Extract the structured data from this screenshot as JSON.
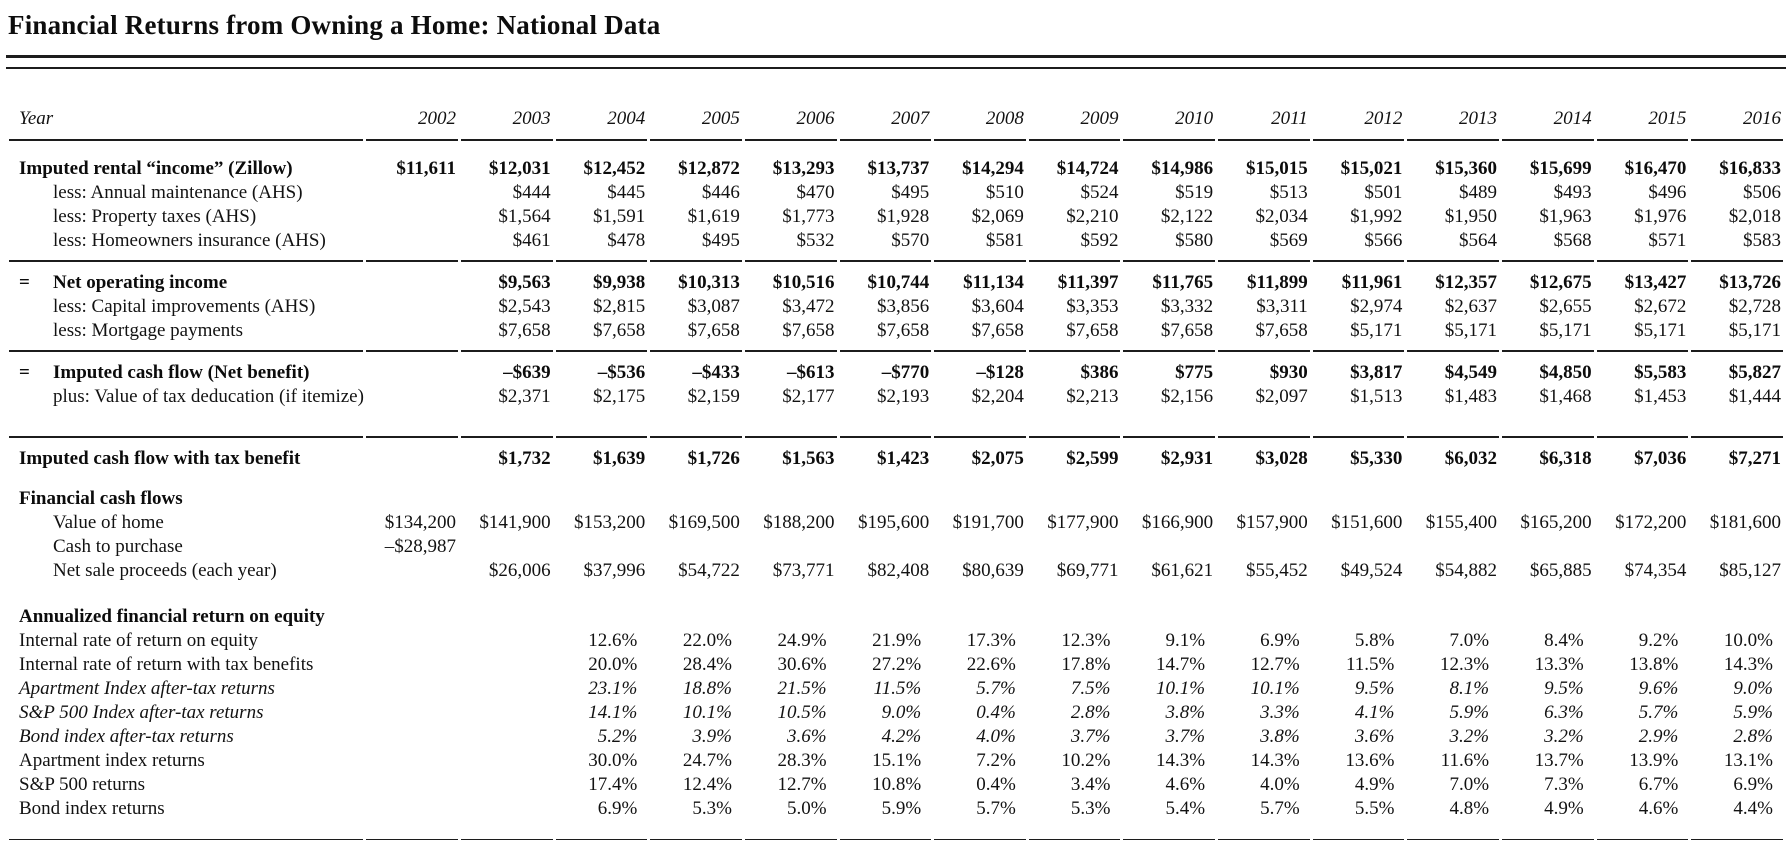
{
  "title": "Financial Returns from Owning a Home: National Data",
  "table": {
    "year_label": "Year",
    "years": [
      "2002",
      "2003",
      "2004",
      "2005",
      "2006",
      "2007",
      "2008",
      "2009",
      "2010",
      "2011",
      "2012",
      "2013",
      "2014",
      "2015",
      "2016"
    ],
    "rows": [
      {
        "label": "Imputed rental “income” (Zillow)",
        "style": "bold",
        "spacing": "first",
        "values": [
          "$11,611",
          "$12,031",
          "$12,452",
          "$12,872",
          "$13,293",
          "$13,737",
          "$14,294",
          "$14,724",
          "$14,986",
          "$15,015",
          "$15,021",
          "$15,360",
          "$15,699",
          "$16,470",
          "$16,833"
        ]
      },
      {
        "label": "less: Annual maintenance (AHS)",
        "style": "indent",
        "values": [
          "",
          "$444",
          "$445",
          "$446",
          "$470",
          "$495",
          "$510",
          "$524",
          "$519",
          "$513",
          "$501",
          "$489",
          "$493",
          "$496",
          "$506"
        ]
      },
      {
        "label": "less: Property taxes (AHS)",
        "style": "indent",
        "values": [
          "",
          "$1,564",
          "$1,591",
          "$1,619",
          "$1,773",
          "$1,928",
          "$2,069",
          "$2,210",
          "$2,122",
          "$2,034",
          "$1,992",
          "$1,950",
          "$1,963",
          "$1,976",
          "$2,018"
        ]
      },
      {
        "label": "less: Homeowners insurance (AHS)",
        "style": "indent",
        "spacing": "before-rule",
        "rule_below": true,
        "values": [
          "",
          "$461",
          "$478",
          "$495",
          "$532",
          "$570",
          "$581",
          "$592",
          "$580",
          "$569",
          "$566",
          "$564",
          "$568",
          "$571",
          "$583"
        ]
      },
      {
        "label": "Net operating income",
        "style": "bold",
        "eq": "=",
        "spacing": "after-rule",
        "values": [
          "",
          "$9,563",
          "$9,938",
          "$10,313",
          "$10,516",
          "$10,744",
          "$11,134",
          "$11,397",
          "$11,765",
          "$11,899",
          "$11,961",
          "$12,357",
          "$12,675",
          "$13,427",
          "$13,726"
        ]
      },
      {
        "label": "less: Capital improvements (AHS)",
        "style": "indent",
        "values": [
          "",
          "$2,543",
          "$2,815",
          "$3,087",
          "$3,472",
          "$3,856",
          "$3,604",
          "$3,353",
          "$3,332",
          "$3,311",
          "$2,974",
          "$2,637",
          "$2,655",
          "$2,672",
          "$2,728"
        ]
      },
      {
        "label": "less: Mortgage payments",
        "style": "indent",
        "spacing": "before-rule",
        "rule_below": true,
        "values": [
          "",
          "$7,658",
          "$7,658",
          "$7,658",
          "$7,658",
          "$7,658",
          "$7,658",
          "$7,658",
          "$7,658",
          "$7,658",
          "$5,171",
          "$5,171",
          "$5,171",
          "$5,171",
          "$5,171"
        ]
      },
      {
        "label": "Imputed cash flow (Net benefit)",
        "style": "bold",
        "eq": "=",
        "spacing": "after-rule",
        "values": [
          "",
          "–$639",
          "–$536",
          "–$433",
          "–$613",
          "–$770",
          "–$128",
          "$386",
          "$775",
          "$930",
          "$3,817",
          "$4,549",
          "$4,850",
          "$5,583",
          "$5,827"
        ]
      },
      {
        "label": "plus: Value of tax deducation (if itemize)",
        "style": "indent",
        "values": [
          "",
          "$2,371",
          "$2,175",
          "$2,159",
          "$2,177",
          "$2,193",
          "$2,204",
          "$2,213",
          "$2,156",
          "$2,097",
          "$1,513",
          "$1,483",
          "$1,468",
          "$1,453",
          "$1,444"
        ]
      },
      {
        "type": "spacer-rule"
      },
      {
        "label": "Imputed cash flow with tax benefit",
        "style": "bold",
        "spacing": "after-rule",
        "values": [
          "",
          "$1,732",
          "$1,639",
          "$1,726",
          "$1,563",
          "$1,423",
          "$2,075",
          "$2,599",
          "$2,931",
          "$3,028",
          "$5,330",
          "$6,032",
          "$6,318",
          "$7,036",
          "$7,271"
        ]
      },
      {
        "label": "Financial cash flows",
        "style": "section",
        "spacing": "gap",
        "values": []
      },
      {
        "label": "Value of home",
        "style": "indent",
        "values": [
          "$134,200",
          "$141,900",
          "$153,200",
          "$169,500",
          "$188,200",
          "$195,600",
          "$191,700",
          "$177,900",
          "$166,900",
          "$157,900",
          "$151,600",
          "$155,400",
          "$165,200",
          "$172,200",
          "$181,600"
        ]
      },
      {
        "label": "Cash to purchase",
        "style": "indent",
        "values": [
          "–$28,987",
          "",
          "",
          "",
          "",
          "",
          "",
          "",
          "",
          "",
          "",
          "",
          "",
          "",
          ""
        ]
      },
      {
        "label": "Net sale proceeds (each year)",
        "style": "indent",
        "values": [
          "",
          "$26,006",
          "$37,996",
          "$54,722",
          "$73,771",
          "$82,408",
          "$80,639",
          "$69,771",
          "$61,621",
          "$55,452",
          "$49,524",
          "$54,882",
          "$65,885",
          "$74,354",
          "$85,127"
        ]
      },
      {
        "label": "Annualized financial return on equity",
        "style": "section",
        "spacing": "gap-large",
        "values": []
      },
      {
        "label": "Internal rate of return on equity",
        "style": "plain",
        "pct": true,
        "values": [
          "",
          "",
          "12.6%",
          "22.0%",
          "24.9%",
          "21.9%",
          "17.3%",
          "12.3%",
          "9.1%",
          "6.9%",
          "5.8%",
          "7.0%",
          "8.4%",
          "9.2%",
          "10.0%"
        ]
      },
      {
        "label": "Internal rate of return with tax benefits",
        "style": "plain",
        "pct": true,
        "values": [
          "",
          "",
          "20.0%",
          "28.4%",
          "30.6%",
          "27.2%",
          "22.6%",
          "17.8%",
          "14.7%",
          "12.7%",
          "11.5%",
          "12.3%",
          "13.3%",
          "13.8%",
          "14.3%"
        ]
      },
      {
        "label": "Apartment Index after-tax returns",
        "style": "italic",
        "pct": true,
        "values": [
          "",
          "",
          "23.1%",
          "18.8%",
          "21.5%",
          "11.5%",
          "5.7%",
          "7.5%",
          "10.1%",
          "10.1%",
          "9.5%",
          "8.1%",
          "9.5%",
          "9.6%",
          "9.0%"
        ]
      },
      {
        "label": "S&P 500 Index after-tax returns",
        "style": "italic",
        "pct": true,
        "values": [
          "",
          "",
          "14.1%",
          "10.1%",
          "10.5%",
          "9.0%",
          "0.4%",
          "2.8%",
          "3.8%",
          "3.3%",
          "4.1%",
          "5.9%",
          "6.3%",
          "5.7%",
          "5.9%"
        ]
      },
      {
        "label": "Bond index after-tax returns",
        "style": "italic",
        "pct": true,
        "values": [
          "",
          "",
          "5.2%",
          "3.9%",
          "3.6%",
          "4.2%",
          "4.0%",
          "3.7%",
          "3.7%",
          "3.8%",
          "3.6%",
          "3.2%",
          "3.2%",
          "2.9%",
          "2.8%"
        ]
      },
      {
        "label": "Apartment index returns",
        "style": "plain",
        "pct": true,
        "values": [
          "",
          "",
          "30.0%",
          "24.7%",
          "28.3%",
          "15.1%",
          "7.2%",
          "10.2%",
          "14.3%",
          "14.3%",
          "13.6%",
          "11.6%",
          "13.7%",
          "13.9%",
          "13.1%"
        ]
      },
      {
        "label": "S&P 500 returns",
        "style": "plain",
        "pct": true,
        "values": [
          "",
          "",
          "17.4%",
          "12.4%",
          "12.7%",
          "10.8%",
          "0.4%",
          "3.4%",
          "4.6%",
          "4.0%",
          "4.9%",
          "7.0%",
          "7.3%",
          "6.7%",
          "6.9%"
        ]
      },
      {
        "label": "Bond index returns",
        "style": "plain",
        "pct": true,
        "values": [
          "",
          "",
          "6.9%",
          "5.3%",
          "5.0%",
          "5.9%",
          "5.7%",
          "5.3%",
          "5.4%",
          "5.7%",
          "5.5%",
          "4.8%",
          "4.9%",
          "4.6%",
          "4.4%"
        ]
      },
      {
        "type": "bottom-thin"
      },
      {
        "type": "bottom-thick"
      }
    ]
  }
}
